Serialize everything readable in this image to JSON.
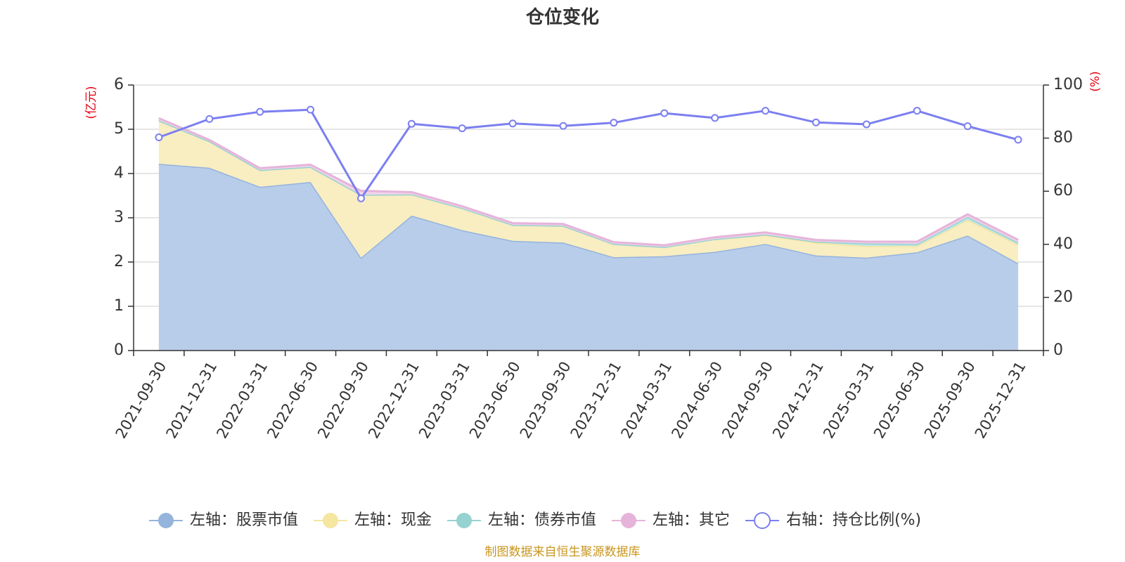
{
  "chart_data": {
    "type": "area",
    "title": "仓位变化",
    "left_axis_unit": "(亿元)",
    "right_axis_unit": "(%)",
    "left_ylim": [
      0,
      6
    ],
    "left_ticks": [
      "0",
      "1",
      "2",
      "3",
      "4",
      "5",
      "6"
    ],
    "right_ylim": [
      0,
      100
    ],
    "right_ticks": [
      "0",
      "20",
      "40",
      "60",
      "80",
      "100"
    ],
    "categories": [
      "2021-09-30",
      "2021-12-31",
      "2022-03-31",
      "2022-06-30",
      "2022-09-30",
      "2022-12-31",
      "2023-03-31",
      "2023-06-30",
      "2023-09-30",
      "2023-12-31",
      "2024-03-31",
      "2024-06-30",
      "2024-09-30",
      "2024-12-31",
      "2025-03-31",
      "2025-06-30",
      "2025-09-30",
      "2025-12-31"
    ],
    "stacked_series": [
      {
        "name": "左轴：股票市值",
        "axis": "left",
        "color": "#94b4dc",
        "fill": "#b8cdea",
        "values": [
          4.22,
          4.13,
          3.7,
          3.81,
          2.1,
          3.05,
          2.72,
          2.48,
          2.44,
          2.11,
          2.13,
          2.23,
          2.41,
          2.15,
          2.1,
          2.22,
          2.6,
          1.97
        ]
      },
      {
        "name": "左轴：现金",
        "axis": "left",
        "color": "#f5e6a0",
        "fill": "#f9edc2",
        "values": [
          0.98,
          0.6,
          0.38,
          0.34,
          1.42,
          0.48,
          0.5,
          0.36,
          0.38,
          0.3,
          0.21,
          0.29,
          0.2,
          0.29,
          0.26,
          0.14,
          0.35,
          0.42
        ]
      },
      {
        "name": "左轴：债券市值",
        "axis": "left",
        "color": "#96d2d0",
        "fill": "#bfe6e4",
        "values": [
          0,
          0,
          0,
          0,
          0,
          0,
          0,
          0,
          0,
          0,
          0,
          0,
          0.01,
          0.02,
          0.06,
          0.05,
          0.07,
          0.05
        ]
      },
      {
        "name": "左轴：其它",
        "axis": "left",
        "color": "#e6b4da",
        "fill": "#f2d4ea",
        "values": [
          0.05,
          0.03,
          0.04,
          0.05,
          0.09,
          0.05,
          0.04,
          0.04,
          0.04,
          0.04,
          0.04,
          0.04,
          0.05,
          0.04,
          0.04,
          0.05,
          0.06,
          0.06
        ]
      }
    ],
    "line_series": {
      "name": "右轴：持仓比例(%)",
      "axis": "right",
      "color": "#7b7ff0",
      "values": [
        80.3,
        87.2,
        89.9,
        90.7,
        57.3,
        85.4,
        83.7,
        85.5,
        84.6,
        85.8,
        89.4,
        87.6,
        90.3,
        85.9,
        85.2,
        90.3,
        84.5,
        79.4
      ]
    },
    "legend_position": "bottom",
    "source": "制图数据来自恒生聚源数据库"
  }
}
